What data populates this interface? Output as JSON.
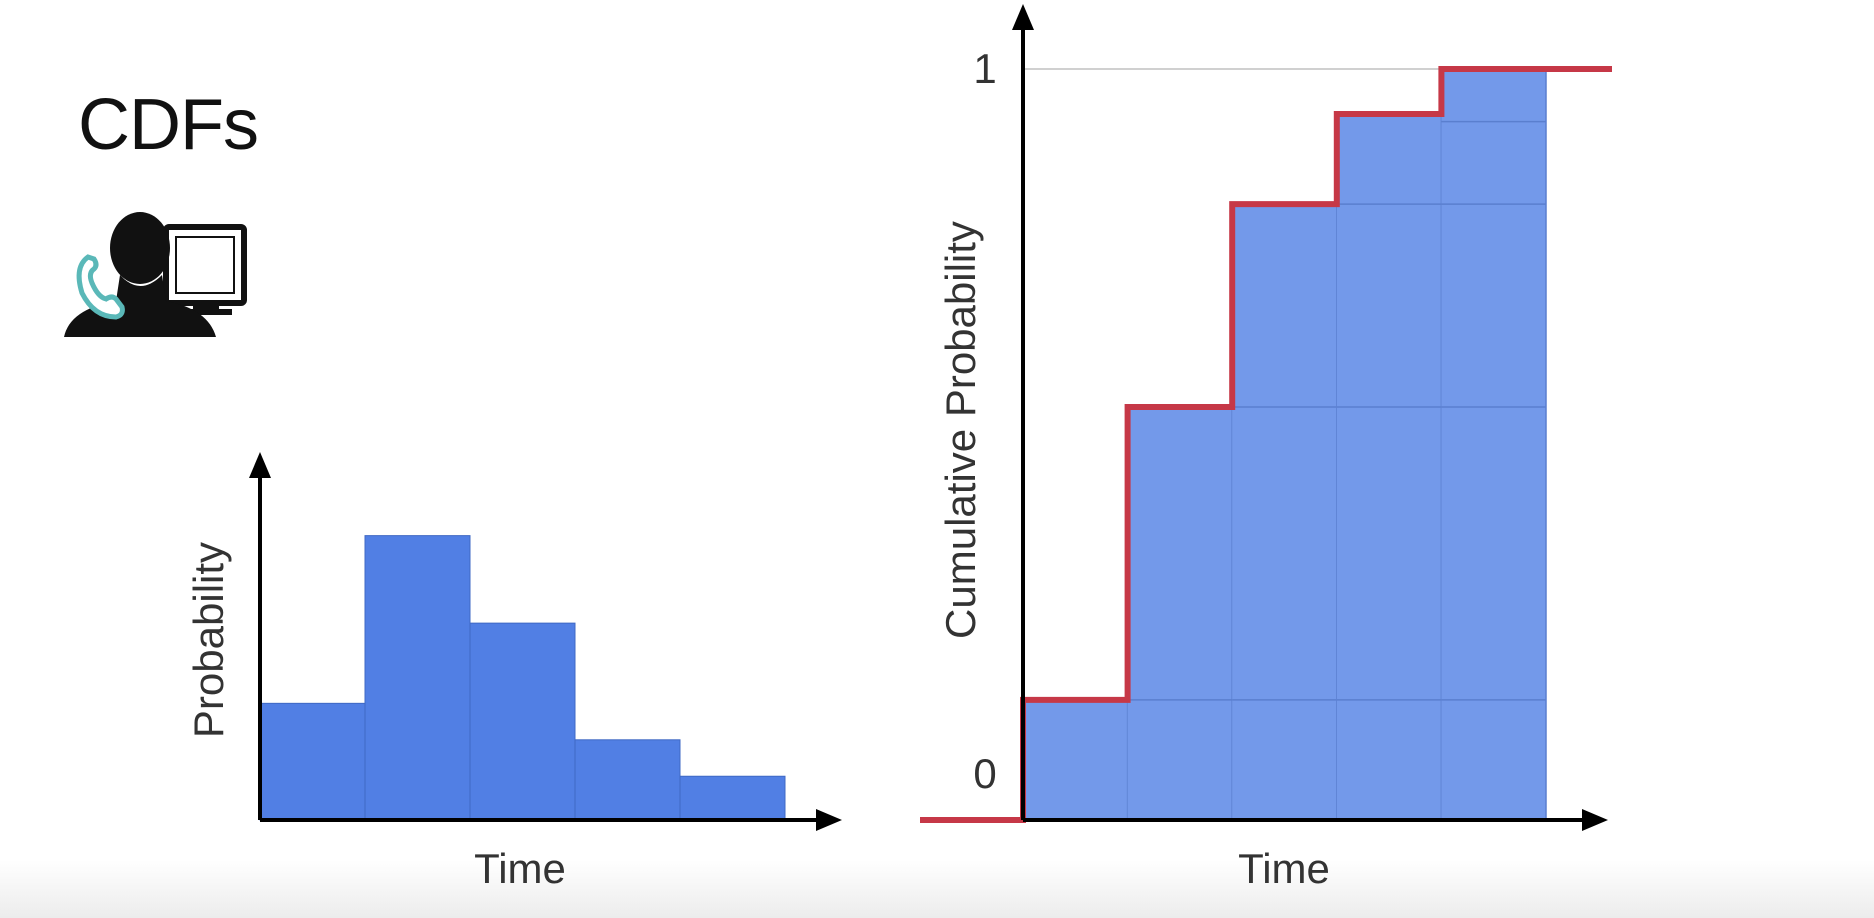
{
  "slide": {
    "title": "CDFs",
    "icon": "call-center-agent-icon"
  },
  "colors": {
    "pdf_bar": "#517fe4",
    "cdf_bar": "#7399ea",
    "cdf_line": "#c63847",
    "axis": "#000000",
    "text": "#333333",
    "phone_accent": "#5ab8b8"
  },
  "chart_data": [
    {
      "type": "bar",
      "xlabel": "Time",
      "ylabel": "Probability",
      "values": [
        0.16,
        0.39,
        0.27,
        0.11,
        0.06
      ],
      "ylim": [
        0,
        0.48
      ],
      "grid": false
    },
    {
      "type": "bar",
      "xlabel": "Time",
      "ylabel": "Cumulative Probability",
      "values": [
        0.16,
        0.55,
        0.82,
        0.94,
        1.0
      ],
      "yticks": [
        "0",
        "1"
      ],
      "ylim": [
        0,
        1
      ],
      "step_line": true,
      "grid": false
    }
  ]
}
